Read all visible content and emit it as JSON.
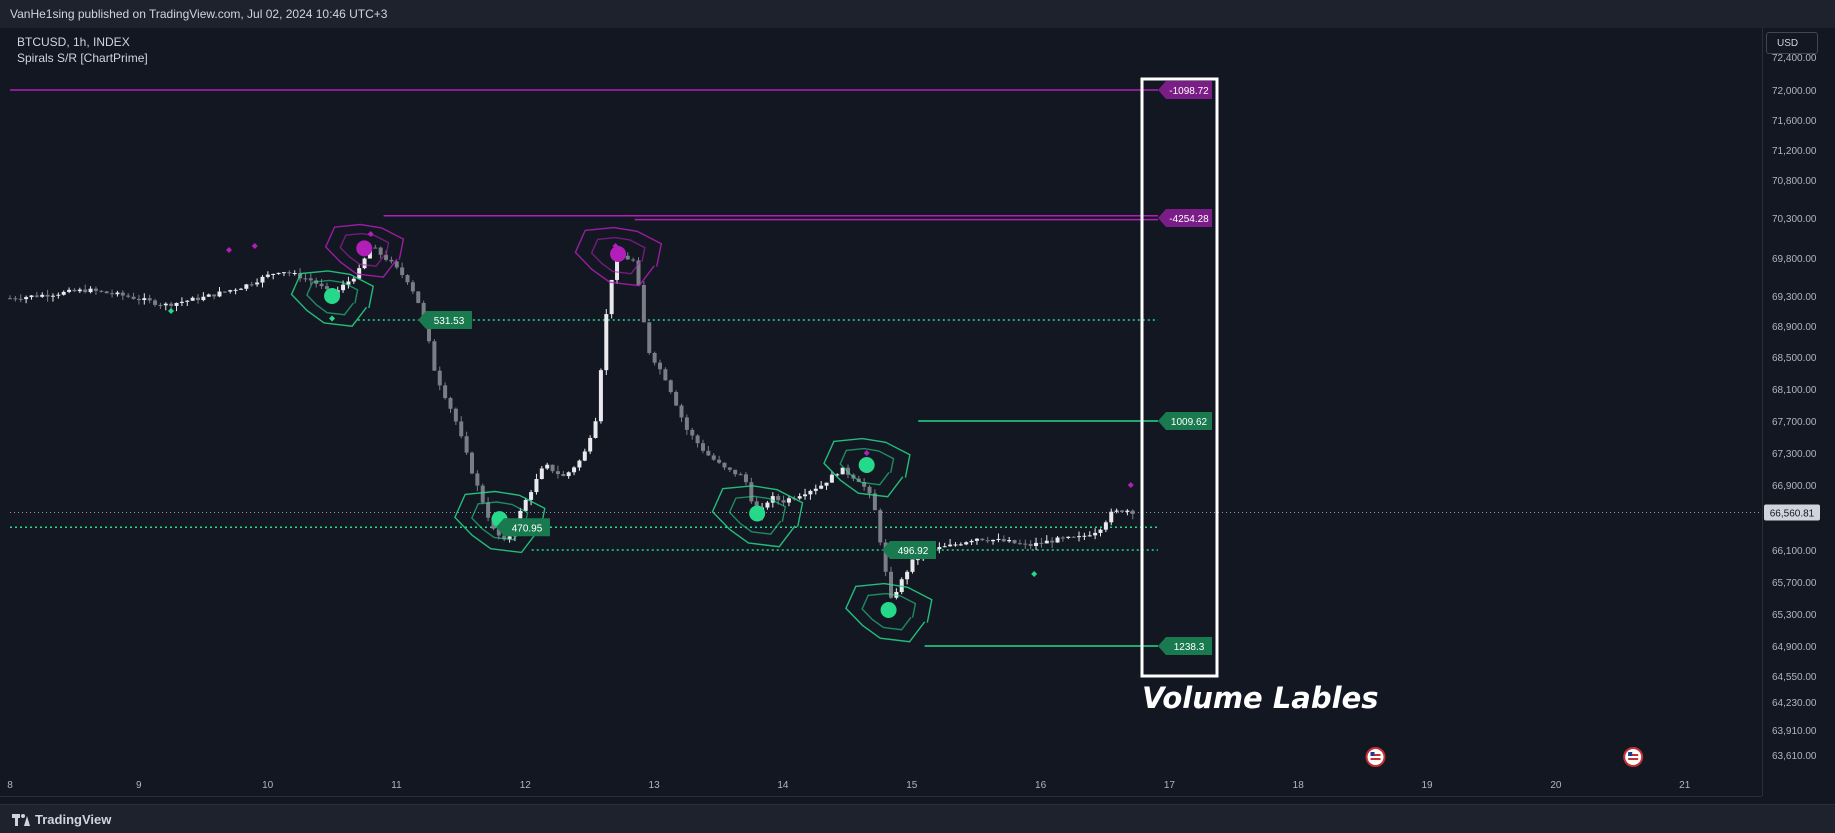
{
  "header": {
    "published": "VanHe1sing published on TradingView.com, Jul 02, 2024 10:46 UTC+3"
  },
  "legend": {
    "symbol": "BTCUSD, 1h, INDEX",
    "indicator": "Spirals S/R [ChartPrime]"
  },
  "price_axis": {
    "currency": "USD"
  },
  "footer": {
    "brand": "TradingView"
  },
  "annotation": {
    "caption": "Volume Lables"
  },
  "colors": {
    "background": "#131722",
    "bull": "#26d98a",
    "bear": "#b21fb8",
    "accent_box": "#ffffff"
  },
  "icons": [
    "us-flag-icon",
    "us-flag-icon",
    "tradingview-logo-icon"
  ],
  "chart_data": {
    "type": "line",
    "y_ticks": [
      {
        "value": 72400,
        "label": "72,400.00"
      },
      {
        "value": 72000,
        "label": "72,000.00"
      },
      {
        "value": 71600,
        "label": "71,600.00"
      },
      {
        "value": 71200,
        "label": "71,200.00"
      },
      {
        "value": 70800,
        "label": "70,800.00"
      },
      {
        "value": 70300,
        "label": "70,300.00"
      },
      {
        "value": 69800,
        "label": "69,800.00"
      },
      {
        "value": 69300,
        "label": "69,300.00"
      },
      {
        "value": 68900,
        "label": "68,900.00"
      },
      {
        "value": 68500,
        "label": "68,500.00"
      },
      {
        "value": 68100,
        "label": "68,100.00"
      },
      {
        "value": 67700,
        "label": "67,700.00"
      },
      {
        "value": 67300,
        "label": "67,300.00"
      },
      {
        "value": 66900,
        "label": "66,900.00"
      },
      {
        "value": 66100,
        "label": "66,100.00"
      },
      {
        "value": 65700,
        "label": "65,700.00"
      },
      {
        "value": 65300,
        "label": "65,300.00"
      },
      {
        "value": 64900,
        "label": "64,900.00"
      },
      {
        "value": 64550,
        "label": "64,550.00"
      },
      {
        "value": 64230,
        "label": "64,230.00"
      },
      {
        "value": 63910,
        "label": "63,910.00"
      },
      {
        "value": 63610,
        "label": "63,610.00"
      }
    ],
    "x_ticks": [
      "8",
      "9",
      "10",
      "11",
      "12",
      "13",
      "14",
      "15",
      "16",
      "17",
      "18",
      "19",
      "20",
      "21"
    ],
    "last_price": {
      "value": 66560.81,
      "label": "66,560.81"
    },
    "ylim": [
      63610,
      72400
    ],
    "xlim": [
      8,
      21.6
    ],
    "price": [
      [
        8.0,
        69270
      ],
      [
        8.3,
        69320
      ],
      [
        8.6,
        69380
      ],
      [
        8.9,
        69300
      ],
      [
        9.2,
        69180
      ],
      [
        9.5,
        69280
      ],
      [
        9.8,
        69420
      ],
      [
        10.1,
        69640
      ],
      [
        10.35,
        69500
      ],
      [
        10.5,
        69310
      ],
      [
        10.7,
        69600
      ],
      [
        10.8,
        69950
      ],
      [
        10.95,
        69750
      ],
      [
        11.1,
        69480
      ],
      [
        11.2,
        69100
      ],
      [
        11.3,
        68300
      ],
      [
        11.45,
        67750
      ],
      [
        11.6,
        67000
      ],
      [
        11.75,
        66350
      ],
      [
        11.85,
        66180
      ],
      [
        12.0,
        66700
      ],
      [
        12.15,
        67150
      ],
      [
        12.3,
        67000
      ],
      [
        12.45,
        67250
      ],
      [
        12.55,
        67750
      ],
      [
        12.65,
        69400
      ],
      [
        12.72,
        69850
      ],
      [
        12.85,
        69750
      ],
      [
        12.95,
        68600
      ],
      [
        13.1,
        68200
      ],
      [
        13.25,
        67600
      ],
      [
        13.4,
        67300
      ],
      [
        13.55,
        67100
      ],
      [
        13.7,
        67000
      ],
      [
        13.8,
        66500
      ],
      [
        13.9,
        66750
      ],
      [
        14.0,
        66700
      ],
      [
        14.15,
        66800
      ],
      [
        14.3,
        66900
      ],
      [
        14.45,
        67100
      ],
      [
        14.6,
        66950
      ],
      [
        14.7,
        66700
      ],
      [
        14.78,
        66000
      ],
      [
        14.83,
        65450
      ],
      [
        14.9,
        65650
      ],
      [
        15.0,
        65950
      ],
      [
        15.15,
        66100
      ],
      [
        15.3,
        66150
      ],
      [
        15.5,
        66250
      ],
      [
        15.75,
        66200
      ],
      [
        15.9,
        66150
      ],
      [
        16.1,
        66220
      ],
      [
        16.3,
        66250
      ],
      [
        16.45,
        66350
      ],
      [
        16.55,
        66550
      ],
      [
        16.65,
        66600
      ],
      [
        16.75,
        66560
      ]
    ],
    "signals": {
      "bull": [
        [
          9.25,
          69100
        ],
        [
          10.5,
          69000
        ],
        [
          11.8,
          66400
        ],
        [
          13.8,
          66500
        ],
        [
          14.65,
          67150
        ],
        [
          14.8,
          65350
        ],
        [
          15.95,
          65800
        ]
      ],
      "bear": [
        [
          9.7,
          69900
        ],
        [
          9.9,
          69950
        ],
        [
          10.8,
          70100
        ],
        [
          12.7,
          69950
        ],
        [
          14.65,
          67300
        ],
        [
          16.7,
          66900
        ]
      ]
    },
    "sr_labels": [
      {
        "text": "-1098.72",
        "price": 72000,
        "kind": "bear"
      },
      {
        "text": "-4254.28",
        "price": 70300,
        "kind": "bear"
      },
      {
        "text": "531.53",
        "price": 68980,
        "kind": "bull"
      },
      {
        "text": "1009.62",
        "price": 67700,
        "kind": "bull"
      },
      {
        "text": "470.95",
        "price": 66380,
        "kind": "bull"
      },
      {
        "text": "496.92",
        "price": 66100,
        "kind": "bull"
      },
      {
        "text": "1238.3",
        "price": 64900,
        "kind": "bull"
      }
    ]
  }
}
